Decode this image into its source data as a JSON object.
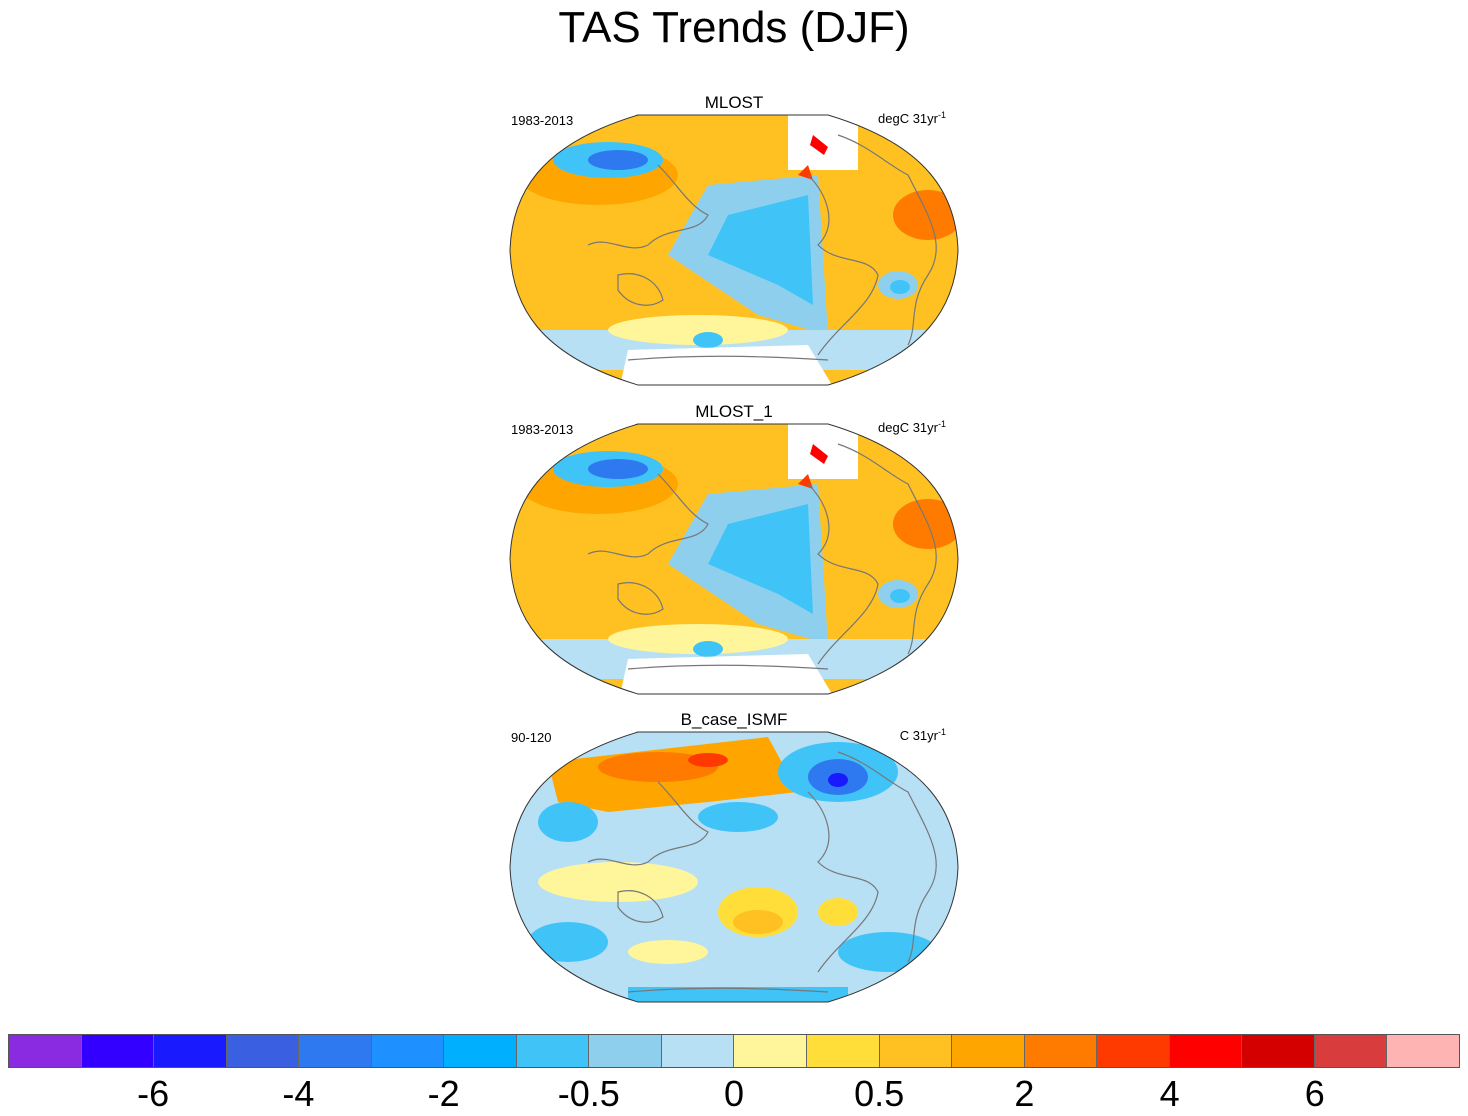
{
  "title": "TAS Trends (DJF)",
  "panels": [
    {
      "name": "MLOST",
      "period": "1983-2013",
      "units": "degC 31yr",
      "units_exp": "-1"
    },
    {
      "name": "MLOST_1",
      "period": "1983-2013",
      "units": "degC 31yr",
      "units_exp": "-1"
    },
    {
      "name": "B_case_ISMF",
      "period": "90-120",
      "units": "C 31yr",
      "units_exp": "-1"
    }
  ],
  "colorbar": {
    "colors": [
      "#8a2be2",
      "#3300ff",
      "#1a1aff",
      "#3a5fe0",
      "#2f79f0",
      "#1e90ff",
      "#00b0ff",
      "#40c4f8",
      "#8ecfee",
      "#b8e0f5",
      "#fff59a",
      "#ffde3a",
      "#ffc122",
      "#ffa500",
      "#ff7b00",
      "#ff3a00",
      "#ff0000",
      "#d40000",
      "#d83c3c",
      "#ffb4b4"
    ],
    "labels": [
      "-6",
      "-4",
      "-2",
      "-0.5",
      "0",
      "0.5",
      "2",
      "4",
      "6"
    ]
  },
  "colors": {
    "land_outline": "#777777",
    "ocean_warm": "#ffc122",
    "ocean_cool": "#8ecfee"
  }
}
